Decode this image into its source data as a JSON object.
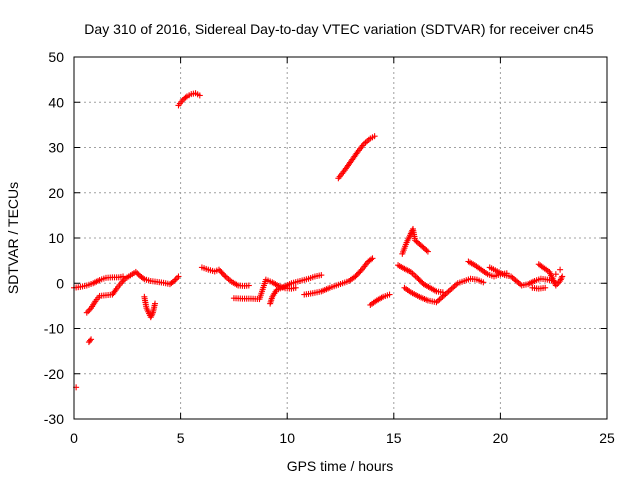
{
  "chart_data": {
    "type": "scatter",
    "title": "Day 310 of 2016, Sidereal Day-to-day VTEC variation (SDTVAR) for receiver cn45",
    "xlabel": "GPS time / hours",
    "ylabel": "SDTVAR / TECUs",
    "xlim": [
      0,
      25
    ],
    "ylim": [
      -30,
      50
    ],
    "xticks": [
      "0",
      "5",
      "10",
      "15",
      "20",
      "25"
    ],
    "yticks": [
      "-30",
      "-20",
      "-10",
      "0",
      "10",
      "20",
      "30",
      "40",
      "50"
    ],
    "grid": true,
    "marker": "+",
    "series": [
      {
        "name": "SDTVAR",
        "color": "#ff0000",
        "points": [
          [
            0.1,
            -23.0
          ],
          [
            0.0,
            -1.0
          ],
          [
            0.3,
            -0.8
          ],
          [
            0.6,
            -0.5
          ],
          [
            0.9,
            0.0
          ],
          [
            1.2,
            0.7
          ],
          [
            1.5,
            1.2
          ],
          [
            1.8,
            1.3
          ],
          [
            2.1,
            1.3
          ],
          [
            2.3,
            1.5
          ],
          [
            0.7,
            -13.0
          ],
          [
            0.8,
            -12.4
          ],
          [
            0.6,
            -6.5
          ],
          [
            0.8,
            -5.5
          ],
          [
            1.0,
            -4.0
          ],
          [
            1.2,
            -2.8
          ],
          [
            1.8,
            -2.5
          ],
          [
            2.0,
            -1.2
          ],
          [
            2.2,
            0.0
          ],
          [
            2.4,
            1.0
          ],
          [
            2.9,
            2.5
          ],
          [
            3.1,
            1.6
          ],
          [
            3.3,
            0.9
          ],
          [
            3.6,
            0.5
          ],
          [
            3.9,
            0.3
          ],
          [
            4.2,
            0.1
          ],
          [
            4.5,
            -0.2
          ],
          [
            4.7,
            0.5
          ],
          [
            4.9,
            1.5
          ],
          [
            3.3,
            -3.0
          ],
          [
            3.4,
            -5.5
          ],
          [
            3.6,
            -7.5
          ],
          [
            3.7,
            -6.5
          ],
          [
            3.8,
            -4.5
          ],
          [
            4.9,
            39.3
          ],
          [
            5.1,
            40.5
          ],
          [
            5.3,
            41.3
          ],
          [
            5.5,
            41.8
          ],
          [
            5.7,
            42.0
          ],
          [
            5.9,
            41.5
          ],
          [
            6.0,
            3.5
          ],
          [
            6.3,
            3.0
          ],
          [
            6.6,
            2.6
          ],
          [
            6.8,
            3.0
          ],
          [
            7.1,
            1.5
          ],
          [
            7.4,
            0.3
          ],
          [
            7.7,
            -0.5
          ],
          [
            8.0,
            -0.6
          ],
          [
            8.2,
            -0.5
          ],
          [
            7.5,
            -3.3
          ],
          [
            7.9,
            -3.4
          ],
          [
            8.3,
            -3.4
          ],
          [
            8.7,
            -3.5
          ],
          [
            9.0,
            0.8
          ],
          [
            9.3,
            0.2
          ],
          [
            9.6,
            -0.6
          ],
          [
            9.9,
            -1.1
          ],
          [
            10.2,
            -1.2
          ],
          [
            10.4,
            -1.0
          ],
          [
            9.2,
            -4.5
          ],
          [
            9.3,
            -3.0
          ],
          [
            9.5,
            -1.5
          ],
          [
            10.2,
            0.0
          ],
          [
            10.6,
            0.5
          ],
          [
            11.0,
            1.0
          ],
          [
            11.3,
            1.5
          ],
          [
            11.6,
            1.8
          ],
          [
            10.8,
            -2.5
          ],
          [
            11.2,
            -2.2
          ],
          [
            11.6,
            -1.8
          ],
          [
            12.0,
            -1.0
          ],
          [
            12.3,
            -0.5
          ],
          [
            12.6,
            0.0
          ],
          [
            12.9,
            0.5
          ],
          [
            13.2,
            1.5
          ],
          [
            13.5,
            3.0
          ],
          [
            13.8,
            4.8
          ],
          [
            14.0,
            5.5
          ],
          [
            12.4,
            23.2
          ],
          [
            12.7,
            25.0
          ],
          [
            13.0,
            27.0
          ],
          [
            13.3,
            29.0
          ],
          [
            13.6,
            30.8
          ],
          [
            13.9,
            32.0
          ],
          [
            14.1,
            32.5
          ],
          [
            13.9,
            -4.8
          ],
          [
            14.2,
            -3.8
          ],
          [
            14.5,
            -3.0
          ],
          [
            14.8,
            -2.5
          ],
          [
            15.2,
            4.0
          ],
          [
            15.5,
            3.2
          ],
          [
            15.8,
            2.5
          ],
          [
            16.1,
            1.2
          ],
          [
            16.4,
            -0.2
          ],
          [
            16.7,
            -1.0
          ],
          [
            17.0,
            -1.8
          ],
          [
            17.3,
            -2.0
          ],
          [
            15.4,
            6.5
          ],
          [
            15.6,
            9.0
          ],
          [
            15.8,
            11.0
          ],
          [
            15.9,
            12.0
          ],
          [
            16.0,
            9.5
          ],
          [
            16.6,
            7.0
          ],
          [
            15.5,
            -1.0
          ],
          [
            15.8,
            -2.0
          ],
          [
            16.2,
            -3.0
          ],
          [
            16.6,
            -3.8
          ],
          [
            17.0,
            -4.2
          ],
          [
            18.0,
            0.0
          ],
          [
            18.3,
            0.5
          ],
          [
            18.6,
            1.0
          ],
          [
            18.9,
            0.8
          ],
          [
            19.2,
            0.2
          ],
          [
            18.5,
            4.8
          ],
          [
            18.8,
            4.0
          ],
          [
            19.1,
            3.0
          ],
          [
            19.4,
            2.0
          ],
          [
            19.7,
            1.5
          ],
          [
            20.0,
            2.0
          ],
          [
            20.3,
            2.2
          ],
          [
            19.5,
            3.5
          ],
          [
            20.2,
            1.8
          ],
          [
            20.5,
            1.5
          ],
          [
            21.0,
            -0.5
          ],
          [
            21.3,
            -0.2
          ],
          [
            21.6,
            0.5
          ],
          [
            21.9,
            1.0
          ],
          [
            22.2,
            0.8
          ],
          [
            22.5,
            0.5
          ],
          [
            21.5,
            -1.0
          ],
          [
            21.8,
            -1.2
          ],
          [
            22.1,
            -1.0
          ],
          [
            21.8,
            4.2
          ],
          [
            22.0,
            3.5
          ],
          [
            22.3,
            2.5
          ],
          [
            22.6,
            -0.5
          ],
          [
            22.8,
            0.5
          ],
          [
            22.9,
            1.5
          ],
          [
            22.8,
            3.0
          ],
          [
            22.6,
            2.0
          ]
        ]
      }
    ]
  }
}
